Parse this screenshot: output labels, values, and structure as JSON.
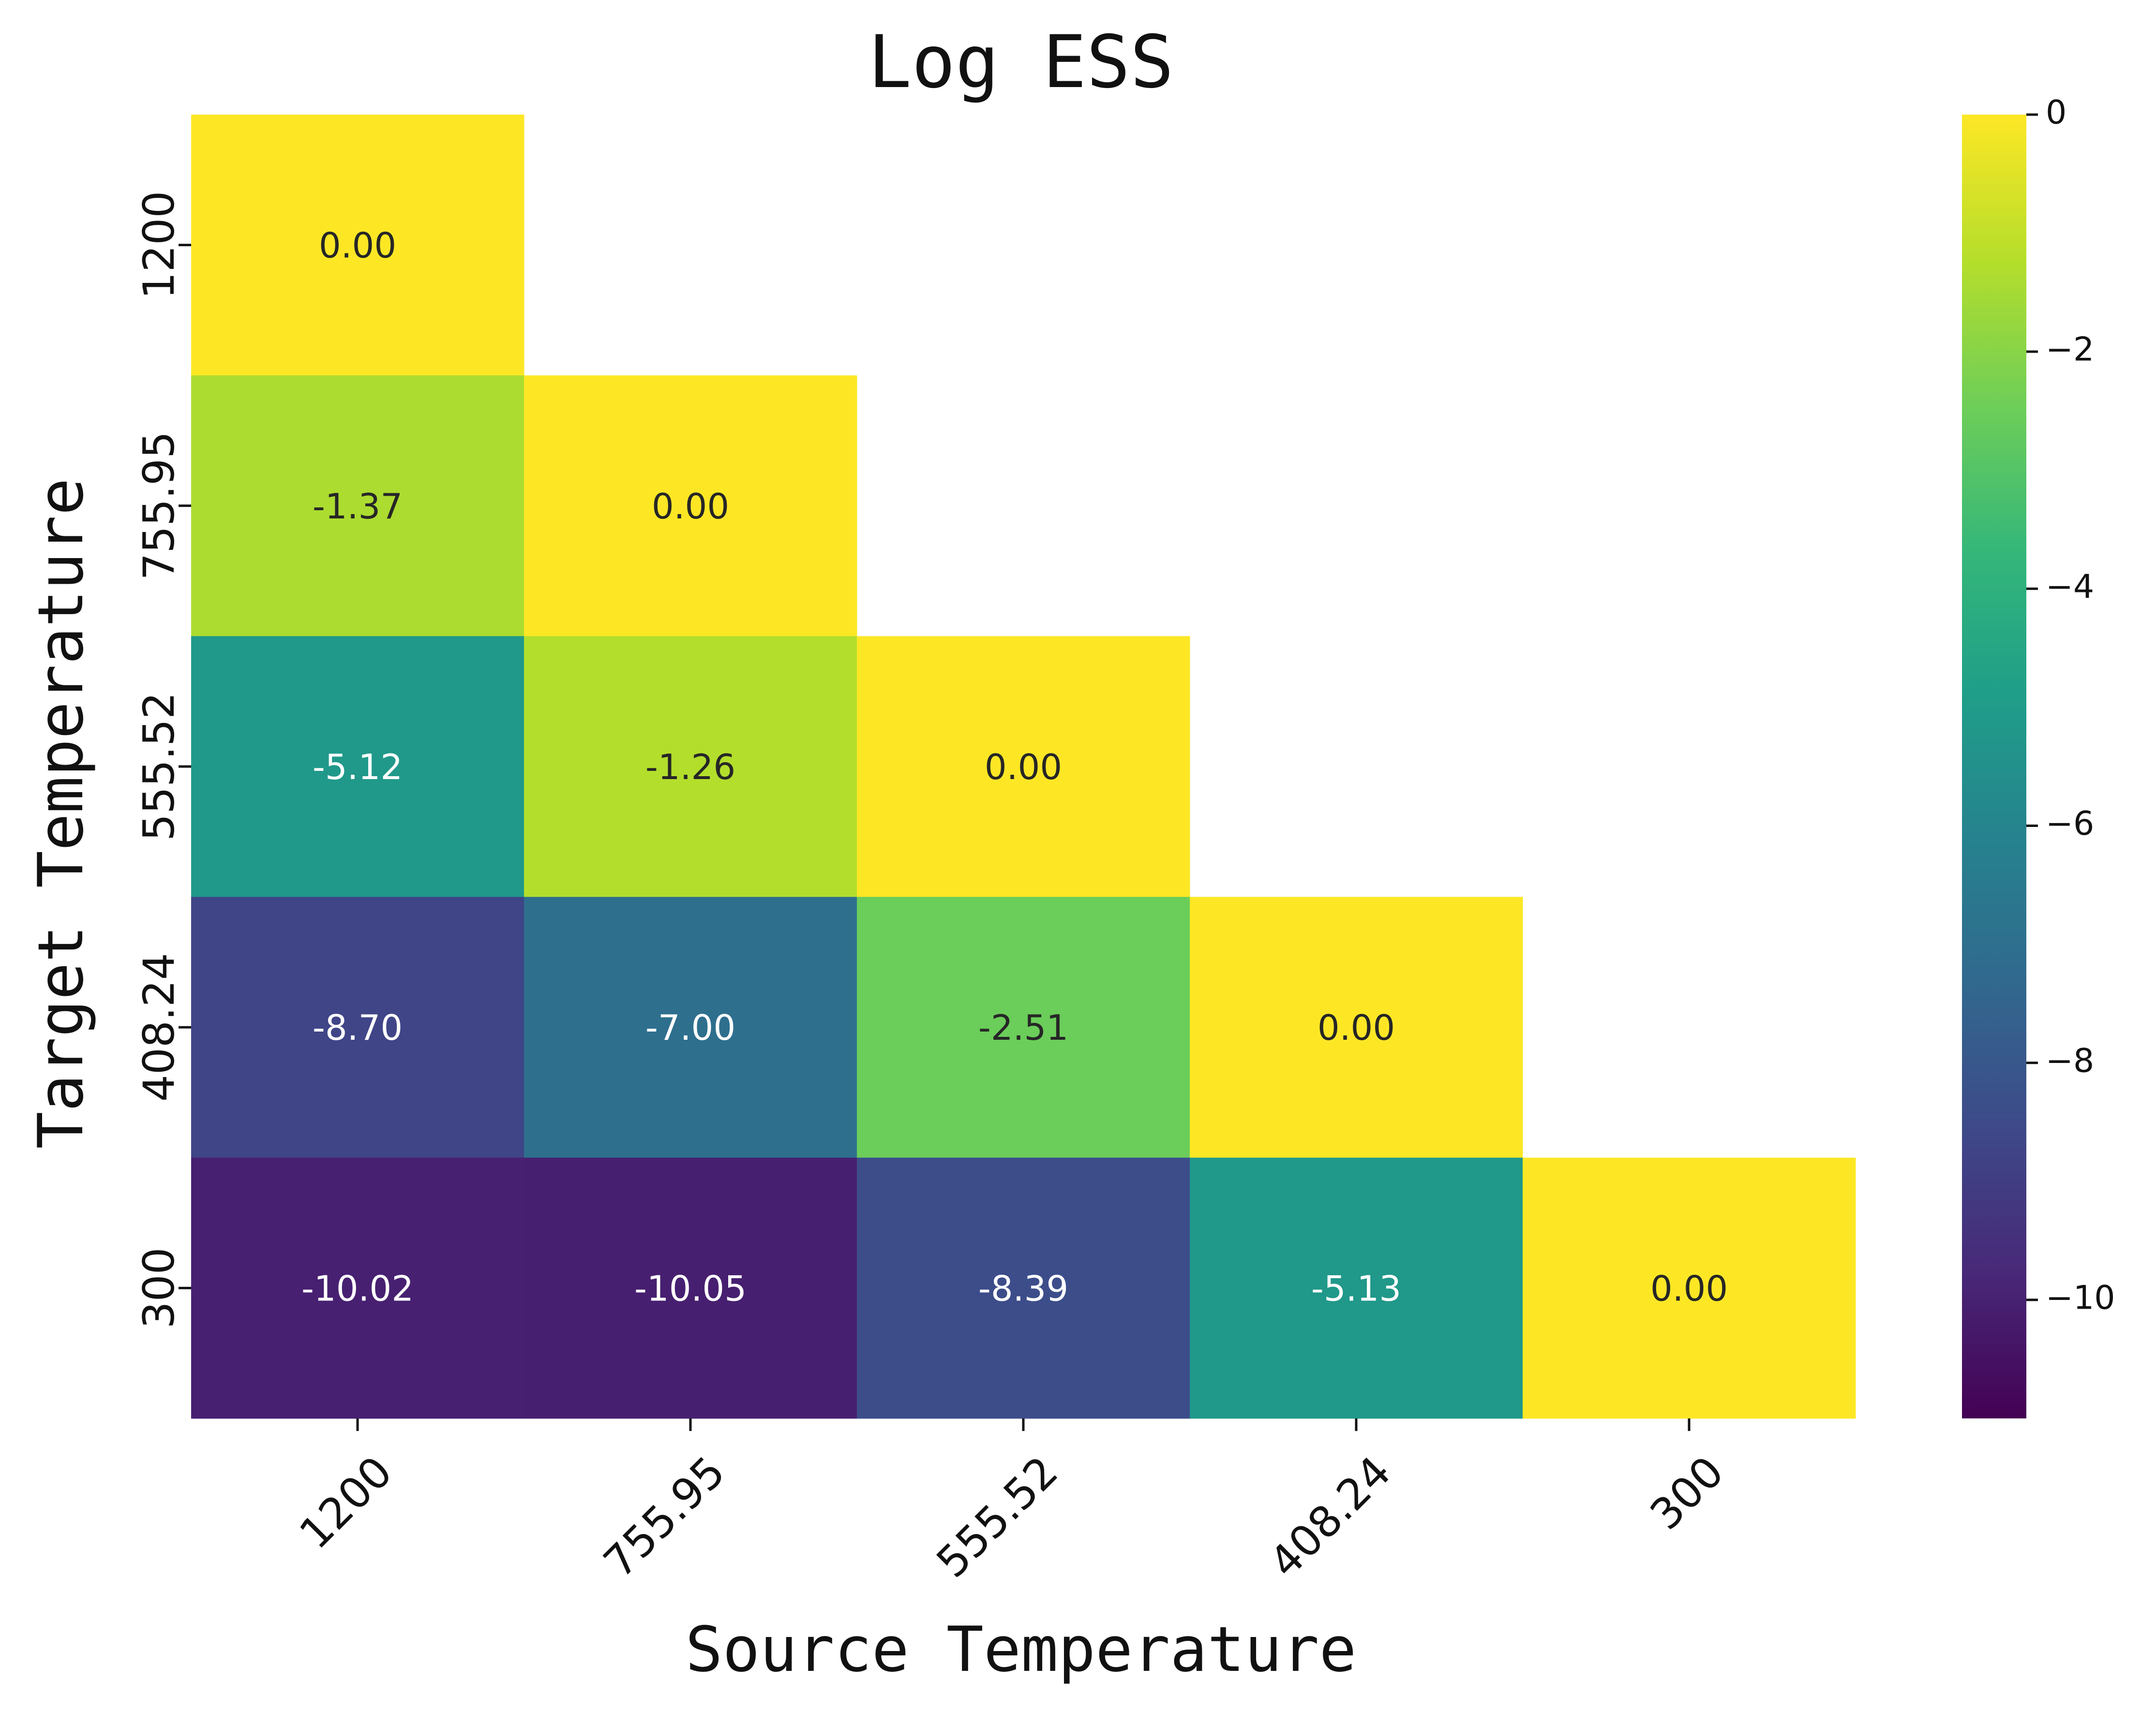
{
  "chart_data": {
    "type": "heatmap",
    "title": "Log ESS",
    "xlabel": "Source Temperature",
    "ylabel": "Target Temperature",
    "x_categories": [
      "1200",
      "755.95",
      "555.52",
      "408.24",
      "300"
    ],
    "y_categories": [
      "1200",
      "755.95",
      "555.52",
      "408.24",
      "300"
    ],
    "values": [
      [
        0.0,
        null,
        null,
        null,
        null
      ],
      [
        -1.37,
        0.0,
        null,
        null,
        null
      ],
      [
        -5.12,
        -1.26,
        0.0,
        null,
        null
      ],
      [
        -8.7,
        -7.0,
        -2.51,
        0.0,
        null
      ],
      [
        -10.02,
        -10.05,
        -8.39,
        -5.13,
        0.0
      ]
    ],
    "cell_labels": [
      [
        "0.00",
        null,
        null,
        null,
        null
      ],
      [
        "-1.37",
        "0.00",
        null,
        null,
        null
      ],
      [
        "-5.12",
        "-1.26",
        "0.00",
        null,
        null
      ],
      [
        "-8.70",
        "-7.00",
        "-2.51",
        "0.00",
        null
      ],
      [
        "-10.02",
        "-10.05",
        "-8.39",
        "-5.13",
        "0.00"
      ]
    ],
    "mask": "upper-triangle",
    "colormap": "viridis",
    "colorbar": {
      "range": [
        -11,
        0
      ],
      "ticks": [
        0,
        -2,
        -4,
        -6,
        -8,
        -10
      ],
      "tick_labels": [
        "0",
        "−2",
        "−4",
        "−6",
        "−8",
        "−10"
      ]
    },
    "grid": false,
    "x_tick_rotation_deg": 45,
    "legend": "colorbar-right"
  }
}
